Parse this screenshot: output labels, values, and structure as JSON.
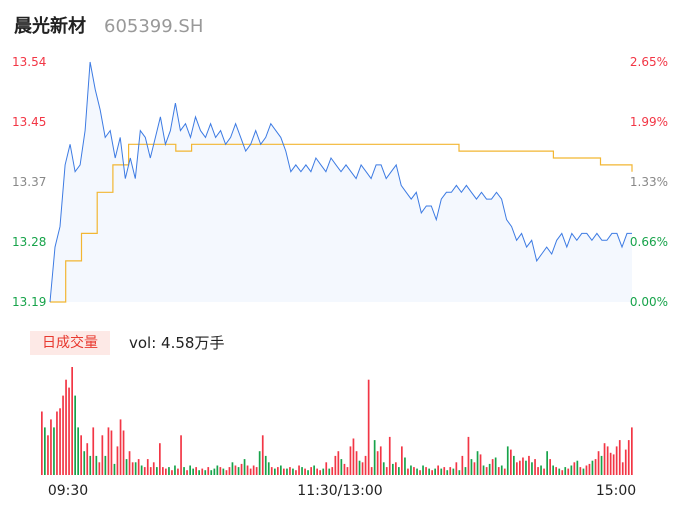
{
  "header": {
    "name": "晨光新材",
    "code": "605399.SH"
  },
  "volume_badge": "日成交量",
  "volume_text": "vol: 4.58万手",
  "colors": {
    "price_line": "#3d7be3",
    "avg_line": "#f2b632",
    "up": "#f23645",
    "down": "#17a34a",
    "area": "#f4f8fe"
  },
  "chart_data": [
    {
      "type": "line",
      "series": [
        {
          "values": [
            13.19,
            13.27,
            13.3,
            13.39,
            13.42,
            13.38,
            13.39,
            13.44,
            13.54,
            13.5,
            13.47,
            13.43,
            13.44,
            13.4,
            13.43,
            13.37,
            13.4,
            13.37,
            13.44,
            13.43,
            13.4,
            13.43,
            13.46,
            13.42,
            13.44,
            13.48,
            13.44,
            13.45,
            13.43,
            13.46,
            13.44,
            13.43,
            13.45,
            13.43,
            13.44,
            13.42,
            13.43,
            13.45,
            13.43,
            13.41,
            13.42,
            13.44,
            13.42,
            13.43,
            13.45,
            13.44,
            13.43,
            13.41,
            13.38,
            13.39,
            13.38,
            13.39,
            13.38,
            13.4,
            13.39,
            13.38,
            13.4,
            13.39,
            13.38,
            13.39,
            13.38,
            13.37,
            13.39,
            13.38,
            13.37,
            13.39,
            13.39,
            13.37,
            13.38,
            13.39,
            13.36,
            13.35,
            13.34,
            13.35,
            13.32,
            13.33,
            13.33,
            13.31,
            13.34,
            13.35,
            13.35,
            13.36,
            13.35,
            13.36,
            13.35,
            13.34,
            13.35,
            13.34,
            13.34,
            13.35,
            13.34,
            13.31,
            13.3,
            13.28,
            13.29,
            13.27,
            13.28,
            13.25,
            13.26,
            13.27,
            13.26,
            13.28,
            13.29,
            13.27,
            13.29,
            13.28,
            13.29,
            13.29,
            13.28,
            13.29,
            13.28,
            13.28,
            13.29,
            13.29,
            13.27,
            13.29,
            13.29
          ]
        },
        {
          "values": [
            13.19,
            13.25,
            13.29,
            13.35,
            13.39,
            13.42,
            13.42,
            13.42,
            13.41,
            13.42,
            13.42,
            13.42,
            13.42,
            13.42,
            13.42,
            13.42,
            13.42,
            13.42,
            13.42,
            13.42,
            13.42,
            13.42,
            13.42,
            13.42,
            13.42,
            13.42,
            13.41,
            13.41,
            13.41,
            13.41,
            13.41,
            13.41,
            13.4,
            13.4,
            13.4,
            13.39,
            13.39,
            13.38
          ]
        }
      ],
      "ylim": [
        13.19,
        13.54
      ],
      "y_ticks_left": [
        "13.54",
        "13.45",
        "13.37",
        "13.28",
        "13.19"
      ],
      "y_ticks_right": [
        "2.65%",
        "1.99%",
        "1.33%",
        "0.66%",
        "0.00%"
      ]
    },
    {
      "type": "bar",
      "x_ticks": [
        "09:30",
        "11:30/13:00",
        "15:00"
      ],
      "values": [
        4,
        3,
        2.5,
        3.5,
        3,
        4,
        4.2,
        5,
        6,
        5.5,
        6.8,
        5,
        3,
        2.5,
        1.5,
        2,
        1.2,
        3,
        1.2,
        0.8,
        2.5,
        1.2,
        3,
        2.8,
        0.7,
        1.8,
        3.5,
        2.8,
        1,
        1.5,
        0.8,
        0.8,
        1,
        0.6,
        0.5,
        1,
        0.5,
        0.8,
        0.5,
        2,
        0.5,
        0.4,
        0.5,
        0.3,
        0.6,
        0.4,
        2.5,
        0.5,
        0.3,
        0.6,
        0.4,
        0.5,
        0.3,
        0.4,
        0.3,
        0.5,
        0.3,
        0.4,
        0.6,
        0.5,
        0.4,
        0.3,
        0.5,
        0.8,
        0.6,
        0.5,
        0.7,
        1,
        0.6,
        0.4,
        0.6,
        0.5,
        1.5,
        2.5,
        1.2,
        0.8,
        0.5,
        0.4,
        0.5,
        0.6,
        0.4,
        0.4,
        0.5,
        0.4,
        0.3,
        0.6,
        0.5,
        0.4,
        0.3,
        0.5,
        0.6,
        0.4,
        0.3,
        0.4,
        0.8,
        0.4,
        0.5,
        1.2,
        1.5,
        1,
        0.7,
        0.5,
        1.8,
        2.3,
        1.5,
        0.9,
        0.8,
        1.2,
        6,
        0.5,
        2.2,
        1.5,
        1.8,
        0.8,
        0.5,
        2.4,
        0.7,
        0.8,
        0.5,
        1.8,
        1.1,
        0.4,
        0.6,
        0.5,
        0.4,
        0.3,
        0.6,
        0.5,
        0.4,
        0.3,
        0.4,
        0.6,
        0.4,
        0.5,
        0.3,
        0.5,
        0.4,
        0.8,
        0.3,
        1.2,
        0.5,
        2.4,
        1,
        0.8,
        1.5,
        1.3,
        0.6,
        0.5,
        0.7,
        1,
        1.1,
        0.5,
        0.6,
        0.4,
        1.8,
        1.6,
        1.2,
        0.8,
        0.9,
        1.1,
        0.9,
        1.2,
        0.8,
        1,
        0.5,
        0.6,
        0.4,
        1.5,
        1,
        0.6,
        0.5,
        0.4,
        0.3,
        0.5,
        0.4,
        0.6,
        0.8,
        0.9,
        0.5,
        0.4,
        0.6,
        0.7,
        0.9,
        1,
        1.5,
        1.2,
        2,
        1.8,
        1.4,
        1.3,
        1.8,
        2.2,
        0.8,
        1.6,
        2.2,
        3
      ],
      "colors": [
        "up",
        "down",
        "up",
        "up",
        "down",
        "up",
        "up",
        "up",
        "up",
        "up",
        "up",
        "down",
        "down",
        "up",
        "down",
        "up",
        "down",
        "up",
        "down",
        "up",
        "up",
        "down",
        "up",
        "up",
        "down",
        "up",
        "up",
        "up",
        "down",
        "up",
        "up",
        "down",
        "up",
        "down",
        "up",
        "up",
        "up",
        "up",
        "down",
        "up",
        "up",
        "up",
        "down",
        "up",
        "down",
        "up",
        "up",
        "down",
        "up",
        "down",
        "down",
        "up",
        "down",
        "up",
        "down",
        "up",
        "down",
        "down",
        "down",
        "up",
        "down",
        "up",
        "up",
        "down",
        "up",
        "down",
        "up",
        "down",
        "up",
        "up",
        "up",
        "up",
        "down",
        "up",
        "down",
        "down",
        "up",
        "down",
        "up",
        "down",
        "up",
        "down",
        "up",
        "down",
        "up",
        "up",
        "down",
        "up",
        "down",
        "up",
        "down",
        "up",
        "up",
        "down",
        "up",
        "down",
        "up",
        "up",
        "up",
        "down",
        "up",
        "up",
        "up",
        "up",
        "up",
        "down",
        "up",
        "up",
        "up",
        "up",
        "down",
        "up",
        "up",
        "down",
        "up",
        "up",
        "down",
        "up",
        "down",
        "up",
        "down",
        "up",
        "down",
        "up",
        "down",
        "up",
        "down",
        "up",
        "down",
        "up",
        "down",
        "up",
        "down",
        "up",
        "down",
        "up",
        "down",
        "up",
        "down",
        "up",
        "down",
        "up",
        "down",
        "up",
        "down",
        "up",
        "down",
        "up",
        "down",
        "up",
        "down",
        "up",
        "down",
        "up",
        "down",
        "up",
        "down",
        "up",
        "up",
        "up",
        "down",
        "up",
        "down",
        "up",
        "up",
        "down",
        "up",
        "down",
        "up",
        "down",
        "up",
        "down",
        "up",
        "down",
        "up",
        "down",
        "up",
        "down",
        "up",
        "down",
        "up",
        "up",
        "down",
        "up",
        "up",
        "down",
        "up",
        "up",
        "up"
      ]
    }
  ]
}
